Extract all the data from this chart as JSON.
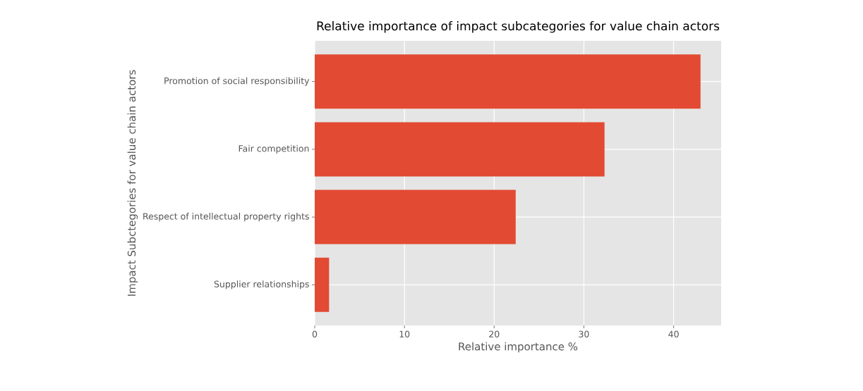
{
  "chart_data": {
    "type": "bar",
    "orientation": "horizontal",
    "title": "Relative importance of impact subcategories for value chain actors",
    "xlabel": "Relative importance %",
    "ylabel": "Impact Subctegories for value chain actors",
    "categories": [
      "Promotion of social responsibility",
      "Fair competition",
      "Respect of intellectual property rights",
      "Supplier relationships"
    ],
    "values": [
      43.0,
      32.3,
      22.4,
      1.6
    ],
    "color": "#e24a33",
    "xlim": [
      0,
      45.3
    ],
    "xticks": [
      0,
      10,
      20,
      30,
      40
    ],
    "grid": true
  }
}
